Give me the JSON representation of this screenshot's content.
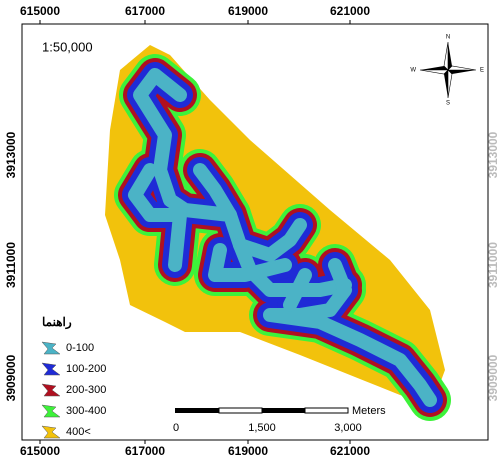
{
  "map": {
    "scale_text": "1:50,000",
    "top_labels": [
      "615000",
      "617000",
      "619000",
      "621000"
    ],
    "bottom_labels": [
      "615000",
      "617000",
      "619000",
      "621000"
    ],
    "left_labels": [
      "3913000",
      "3911000",
      "3909000"
    ],
    "right_labels": [
      "3913000",
      "3911000",
      "3909000"
    ],
    "compass": {
      "n": "N",
      "e": "E",
      "s": "S",
      "w": "W"
    },
    "legend": {
      "title": "راهنما",
      "items": [
        {
          "label": "0-100",
          "color": "#4bb3c6"
        },
        {
          "label": "100-200",
          "color": "#1f2bd6"
        },
        {
          "label": "200-300",
          "color": "#b01020"
        },
        {
          "label": "300-400",
          "color": "#3df23a"
        },
        {
          "label": "400<",
          "color": "#f2c20c"
        }
      ]
    },
    "scalebar": {
      "labels": [
        "0",
        "1,500",
        "3,000"
      ],
      "unit": "Meters"
    }
  }
}
